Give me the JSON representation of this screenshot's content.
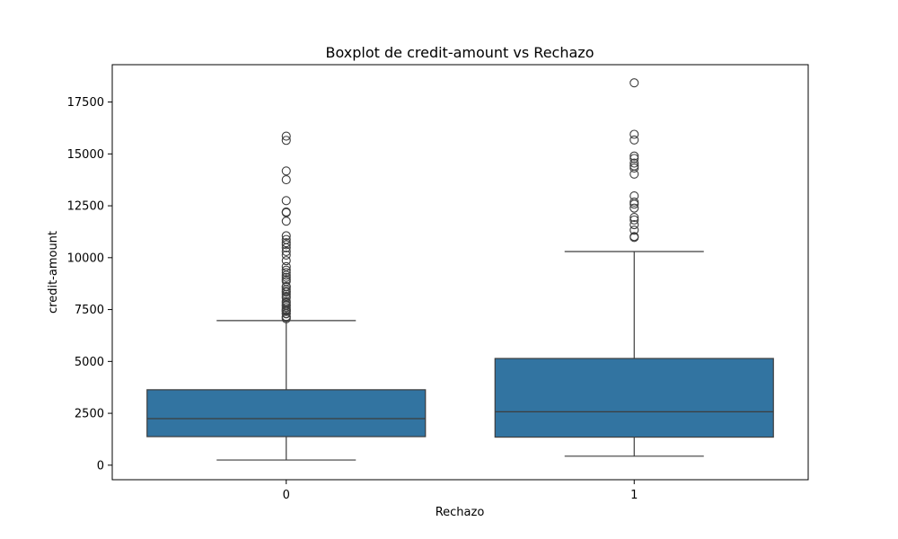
{
  "chart_data": {
    "type": "boxplot",
    "title": "Boxplot de credit-amount vs Rechazo",
    "xlabel": "Rechazo",
    "ylabel": "credit-amount",
    "categories": [
      "0",
      "1"
    ],
    "ylim": [
      -700,
      19300
    ],
    "yticks": [
      0,
      2500,
      5000,
      7500,
      10000,
      12500,
      15000,
      17500
    ],
    "ytick_labels": [
      "0",
      "2500",
      "5000",
      "7500",
      "10000",
      "12500",
      "15000",
      "17500"
    ],
    "grid": false,
    "box_color": "#3274a1",
    "line_color": "#3d3d3d",
    "boxes": [
      {
        "category": "0",
        "whisker_low": 250,
        "q1": 1376,
        "median": 2244,
        "q3": 3635,
        "whisker_high": 6967,
        "outliers": [
          7057,
          7119,
          7166,
          7297,
          7308,
          7409,
          7418,
          7472,
          7511,
          7596,
          7685,
          7721,
          7814,
          7882,
          8065,
          8133,
          8229,
          8335,
          8386,
          8471,
          8588,
          8613,
          8858,
          8947,
          9055,
          9157,
          9283,
          9398,
          9566,
          9857,
          10127,
          10297,
          10477,
          10623,
          10722,
          10875,
          11054,
          11760,
          12169,
          12204,
          12749,
          13756,
          14179,
          15653,
          15857
        ]
      },
      {
        "category": "1",
        "whisker_low": 433,
        "q1": 1352,
        "median": 2574,
        "q3": 5142,
        "whisker_high": 10297,
        "outliers": [
          10974,
          11020,
          11328,
          11590,
          11816,
          11938,
          12389,
          12579,
          12680,
          12976,
          14027,
          14318,
          14421,
          14555,
          14782,
          14896,
          15672,
          15945,
          18424
        ]
      }
    ]
  }
}
